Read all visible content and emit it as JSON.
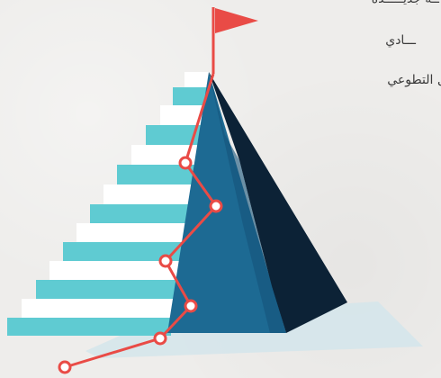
{
  "captions": [
    "ــة جديـــــدة",
    "ـــادي",
    "ل التطوعي"
  ],
  "colors": {
    "background": "#eeedeb",
    "flag": "#e94b46",
    "path": "#e94b46",
    "mountain_light": "#1f6f99",
    "mountain_dark": "#0c2236",
    "steps_teal": "#5fcbd2",
    "steps_white": "#ffffff",
    "ground_shadow": "#cfe3ea"
  },
  "icons": [
    "flag-icon",
    "mountain-icon",
    "stairs-icon",
    "path-node-icon"
  ]
}
